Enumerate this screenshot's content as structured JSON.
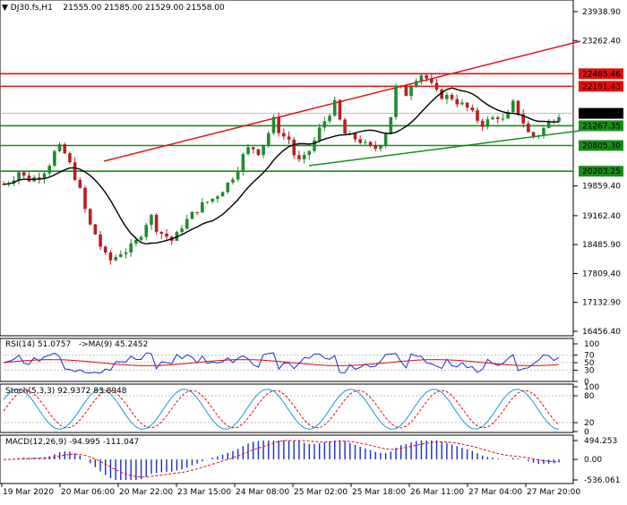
{
  "header": {
    "symbol": "DJ30.fs,H1",
    "ohlc": "21555.00 21585.00 21529.00 21558.00"
  },
  "colors": {
    "bull": "#1f8b2f",
    "bear": "#b81f1f",
    "red_line": "#e01010",
    "green_line": "#1a8c1a",
    "ma_line": "#000000",
    "rsi_line": "#1c2ad6",
    "rsi_ma": "#d01010",
    "stoch_main": "#1a9ad0",
    "stoch_signal": "#d01010",
    "macd_hist": "#1c2ad6",
    "macd_signal": "#d01010",
    "price_tag_current": "#000000"
  },
  "price_axis": {
    "ticks": [
      "23938.90",
      "23262.40",
      "22485.46",
      "22191.43",
      "21558.00",
      "21267.35",
      "20805.30",
      "20203.25",
      "19859.40",
      "19162.40",
      "18485.90",
      "17809.40",
      "17132.90",
      "16456.40"
    ]
  },
  "time_axis": {
    "labels": [
      "19 Mar 2020",
      "20 Mar 06:00",
      "20 Mar 22:00",
      "23 Mar 15:00",
      "24 Mar 08:00",
      "25 Mar 02:00",
      "25 Mar 18:00",
      "26 Mar 11:00",
      "27 Mar 04:00",
      "27 Mar 20:00"
    ]
  },
  "levels": {
    "red": [
      "22485.46",
      "22191.43"
    ],
    "green": [
      "21267.35",
      "20805.30",
      "20203.25"
    ],
    "current": "21558.00"
  },
  "rsi": {
    "label": "RSI(14) 51.0757",
    "ma_label": "->MA(9) 45.2452",
    "ticks": [
      "100",
      "70",
      "50",
      "30",
      "0"
    ]
  },
  "stoch": {
    "label": "Stoch(5,3,3) 92.9372 83.8948",
    "ticks": [
      "100",
      "80",
      "20",
      "0"
    ]
  },
  "macd": {
    "label": "MACD(12,26,9) -94.995 -111.047",
    "ticks": [
      "494.253",
      "0.00",
      "-536.061"
    ]
  },
  "chart_data": {
    "type": "candlestick",
    "symbol": "DJ30.fs",
    "timeframe": "H1",
    "last_close": 21558,
    "key_levels": [
      22485.46,
      22191.43,
      21267.35,
      20805.3,
      20203.25
    ],
    "series": [
      {
        "name": "price_path",
        "values": [
          19900,
          20000,
          20200,
          20000,
          20050,
          20150,
          20400,
          20800,
          20600,
          20200,
          19700,
          19000,
          18700,
          18250,
          18100,
          18300,
          18350,
          18500,
          18800,
          19200,
          18800,
          18700,
          18550,
          18900,
          19100,
          19300,
          19450,
          19550,
          19700,
          19900,
          20150,
          20550,
          20800,
          20650,
          20950,
          21400,
          21050,
          20950,
          20400,
          20500,
          20800,
          21200,
          21500,
          21800,
          21100,
          21000,
          20950,
          20800,
          20700,
          20900,
          21300,
          22300,
          21950,
          22300,
          22500,
          22350,
          22050,
          21950,
          21950,
          21800,
          21700,
          21500,
          21300,
          21400,
          21500,
          21350,
          21800,
          21500,
          21100,
          21000,
          21200,
          21400,
          21558
        ]
      }
    ]
  }
}
